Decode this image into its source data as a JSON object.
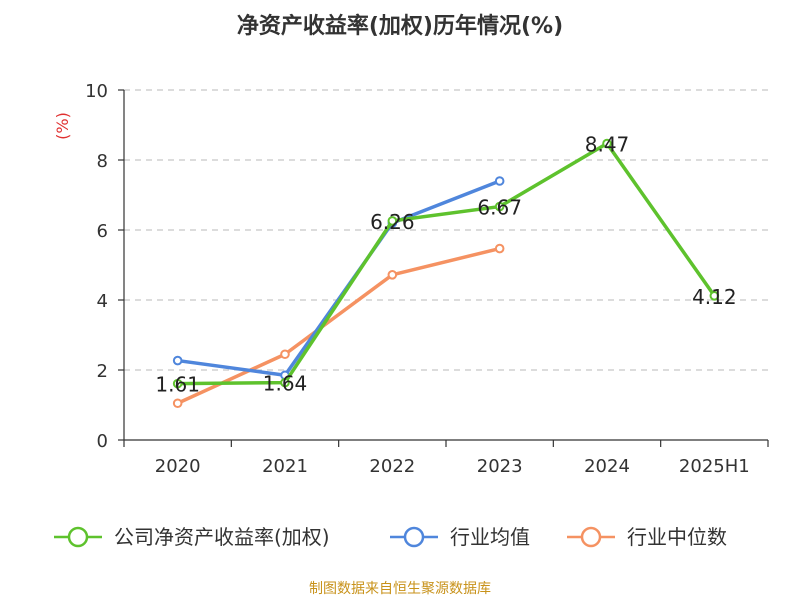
{
  "title": "净资产收益率(加权)历年情况(%)",
  "source": "制图数据来自恒生聚源数据库",
  "chart_data": {
    "type": "line",
    "categories": [
      "2020",
      "2021",
      "2022",
      "2023",
      "2024",
      "2025H1"
    ],
    "ylabel": "(%)",
    "ylim": [
      0,
      10
    ],
    "yticks": [
      0,
      2,
      4,
      6,
      8,
      10
    ],
    "grid": true,
    "legend_position": "bottom",
    "series": [
      {
        "name": "公司净资产收益率(加权)",
        "color": "#5ec22d",
        "values": [
          1.61,
          1.64,
          6.26,
          6.67,
          8.47,
          4.12
        ],
        "labels": [
          "1.61",
          "1.64",
          "6.26",
          "6.67",
          "8.47",
          "4.12"
        ]
      },
      {
        "name": "行业均值",
        "color": "#4f86dc",
        "values": [
          2.27,
          1.85,
          6.2,
          7.4,
          null,
          null
        ]
      },
      {
        "name": "行业中位数",
        "color": "#f59262",
        "values": [
          1.05,
          2.45,
          4.72,
          5.47,
          null,
          null
        ]
      }
    ]
  }
}
